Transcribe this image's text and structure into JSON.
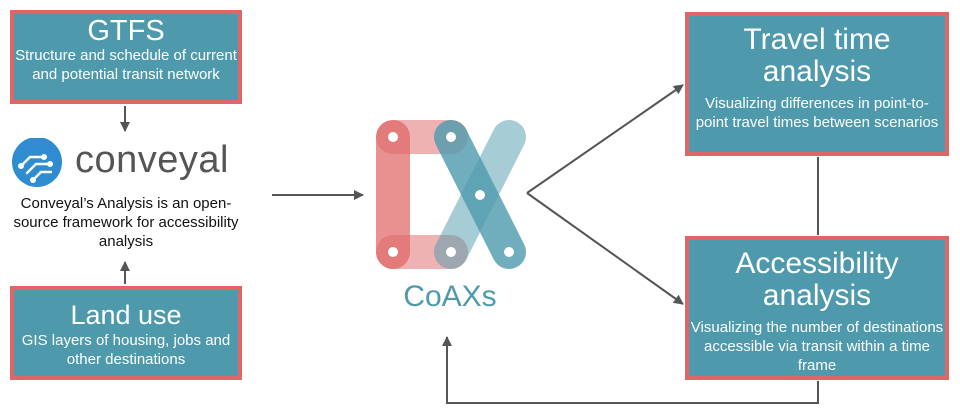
{
  "gtfs": {
    "title": "GTFS",
    "description": "Structure and schedule of current and potential transit network"
  },
  "conveyal": {
    "wordmark": "conveyal",
    "description": "Conveyal’s Analysis is an open-source framework for accessibility analysis",
    "icon": "circuit-nodes-icon"
  },
  "land_use": {
    "title": "Land use",
    "description": "GIS layers of housing, jobs and other destinations"
  },
  "coaxs": {
    "wordmark": "CoAXs",
    "icon": "cx-nodes-logo"
  },
  "travel_time": {
    "title": "Travel time analysis",
    "description": "Visualizing differences in point-to-point travel times between scenarios"
  },
  "accessibility": {
    "title": "Accessibility analysis",
    "description": "Visualizing the number of destinations accessible via transit within a time frame"
  },
  "colors": {
    "box_fill": "#4e9aac",
    "box_border": "#e06566",
    "coaxs_red": "#e06566",
    "coaxs_teal": "#4e9aac",
    "conveyal_blue": "#2f8cd0",
    "arrow": "#555555"
  }
}
